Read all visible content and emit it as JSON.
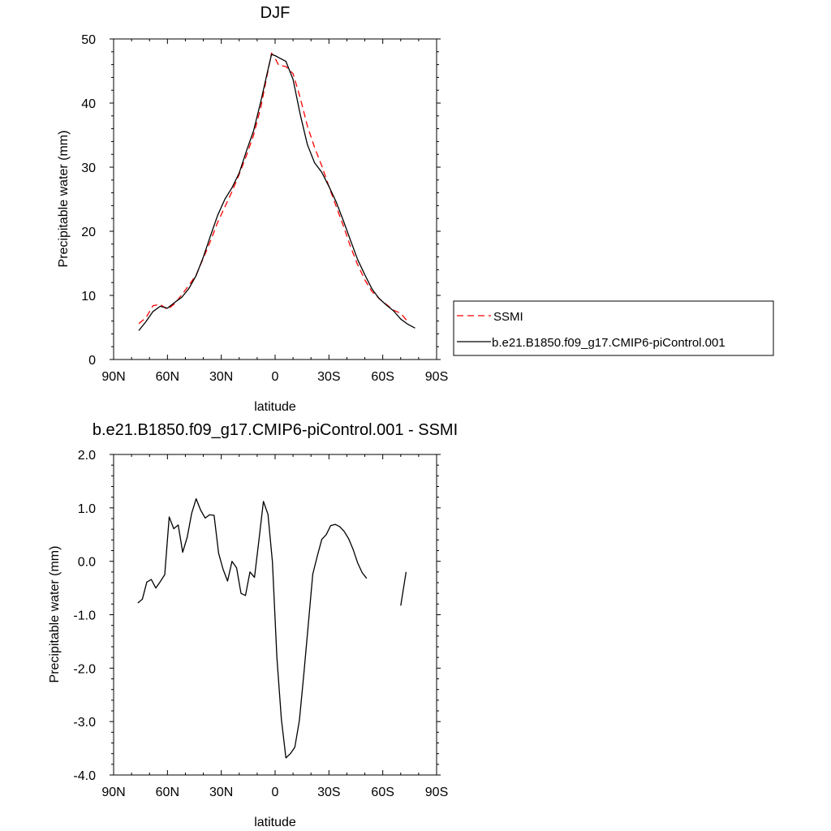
{
  "chart_data": [
    {
      "type": "line",
      "title": "DJF",
      "xlabel": "latitude",
      "ylabel": "Precipitable water (mm)",
      "xlim": [
        -90,
        90
      ],
      "ylim": [
        0,
        50
      ],
      "x_ticks": [
        {
          "value": -90,
          "label": "90N"
        },
        {
          "value": -60,
          "label": "60N"
        },
        {
          "value": -30,
          "label": "30N"
        },
        {
          "value": 0,
          "label": "0"
        },
        {
          "value": 30,
          "label": "30S"
        },
        {
          "value": 60,
          "label": "60S"
        },
        {
          "value": 90,
          "label": "90S"
        }
      ],
      "y_ticks": [
        {
          "value": 0,
          "label": "0"
        },
        {
          "value": 10,
          "label": "10"
        },
        {
          "value": 20,
          "label": "20"
        },
        {
          "value": 30,
          "label": "30"
        },
        {
          "value": 40,
          "label": "40"
        },
        {
          "value": 50,
          "label": "50"
        }
      ],
      "legend_position": "right",
      "series": [
        {
          "name": "SSMI",
          "color": "#ff0000",
          "dashed": true,
          "points": [
            [
              -76,
              5.6
            ],
            [
              -72,
              6.5
            ],
            [
              -68,
              8.4
            ],
            [
              -64,
              8.6
            ],
            [
              -60,
              7.8
            ],
            [
              -56,
              8.7
            ],
            [
              -52,
              10.1
            ],
            [
              -48,
              11.6
            ],
            [
              -44,
              13.2
            ],
            [
              -40,
              15.8
            ],
            [
              -36,
              18.5
            ],
            [
              -32,
              21.4
            ],
            [
              -28,
              23.8
            ],
            [
              -24,
              26.2
            ],
            [
              -20,
              28.9
            ],
            [
              -16,
              31.8
            ],
            [
              -12,
              35.0
            ],
            [
              -8,
              39.3
            ],
            [
              -4,
              45.0
            ],
            [
              -2,
              47.8
            ],
            [
              0,
              47.0
            ],
            [
              2,
              45.9
            ],
            [
              6,
              45.7
            ],
            [
              10,
              44.6
            ],
            [
              14,
              40.8
            ],
            [
              18,
              36.4
            ],
            [
              22,
              33.1
            ],
            [
              26,
              30.2
            ],
            [
              30,
              27.0
            ],
            [
              34,
              23.9
            ],
            [
              38,
              20.9
            ],
            [
              42,
              17.6
            ],
            [
              46,
              14.8
            ],
            [
              50,
              12.4
            ],
            [
              54,
              10.6
            ],
            [
              58,
              9.5
            ],
            [
              62,
              8.6
            ],
            [
              66,
              7.7
            ],
            [
              70,
              7.2
            ],
            [
              74,
              5.9
            ]
          ]
        },
        {
          "name": "b.e21.B1850.f09_g17.CMIP6-piControl.001",
          "color": "#000000",
          "dashed": false,
          "points": [
            [
              -76,
              4.5
            ],
            [
              -72,
              5.9
            ],
            [
              -68,
              7.5
            ],
            [
              -64,
              8.3
            ],
            [
              -60,
              8.0
            ],
            [
              -56,
              8.9
            ],
            [
              -52,
              9.7
            ],
            [
              -48,
              11.1
            ],
            [
              -44,
              13.1
            ],
            [
              -40,
              16.0
            ],
            [
              -36,
              19.3
            ],
            [
              -32,
              22.5
            ],
            [
              -28,
              25.0
            ],
            [
              -24,
              26.8
            ],
            [
              -20,
              29.1
            ],
            [
              -16,
              32.5
            ],
            [
              -12,
              35.7
            ],
            [
              -8,
              40.2
            ],
            [
              -4,
              45.2
            ],
            [
              -2,
              47.6
            ],
            [
              0,
              47.4
            ],
            [
              2,
              47.1
            ],
            [
              6,
              46.5
            ],
            [
              10,
              43.7
            ],
            [
              14,
              38.2
            ],
            [
              18,
              33.5
            ],
            [
              22,
              30.7
            ],
            [
              26,
              29.2
            ],
            [
              30,
              27.0
            ],
            [
              34,
              24.6
            ],
            [
              38,
              21.7
            ],
            [
              42,
              18.6
            ],
            [
              46,
              15.6
            ],
            [
              50,
              13.2
            ],
            [
              54,
              11.0
            ],
            [
              58,
              9.5
            ],
            [
              62,
              8.5
            ],
            [
              66,
              7.6
            ],
            [
              70,
              6.3
            ],
            [
              74,
              5.5
            ],
            [
              78,
              4.9
            ]
          ]
        }
      ]
    },
    {
      "type": "line",
      "title": "b.e21.B1850.f09_g17.CMIP6-piControl.001 - SSMI",
      "xlabel": "latitude",
      "ylabel": "Precipitable water (mm)",
      "xlim": [
        -90,
        90
      ],
      "ylim": [
        -4.0,
        2.0
      ],
      "x_ticks": [
        {
          "value": -90,
          "label": "90N"
        },
        {
          "value": -60,
          "label": "60N"
        },
        {
          "value": -30,
          "label": "30N"
        },
        {
          "value": 0,
          "label": "0"
        },
        {
          "value": 30,
          "label": "30S"
        },
        {
          "value": 60,
          "label": "60S"
        },
        {
          "value": 90,
          "label": "90S"
        }
      ],
      "y_ticks": [
        {
          "value": 2.0,
          "label": "2.0"
        },
        {
          "value": 1.0,
          "label": "1.0"
        },
        {
          "value": 0.0,
          "label": "0.0"
        },
        {
          "value": -1.0,
          "label": "-1.0"
        },
        {
          "value": -2.0,
          "label": "-2.0"
        },
        {
          "value": -3.0,
          "label": "-3.0"
        },
        {
          "value": -4.0,
          "label": "-4.0"
        }
      ],
      "series": [
        {
          "color": "#000000",
          "segments": [
            [
              [
                -76.5,
                -0.78
              ],
              [
                -74,
                -0.71
              ],
              [
                -71.5,
                -0.39
              ],
              [
                -69,
                -0.34
              ],
              [
                -66.5,
                -0.5
              ],
              [
                -64,
                -0.38
              ],
              [
                -61.5,
                -0.25
              ],
              [
                -59,
                0.83
              ],
              [
                -56.5,
                0.61
              ],
              [
                -54,
                0.68
              ],
              [
                -51.5,
                0.17
              ],
              [
                -49,
                0.45
              ],
              [
                -46.5,
                0.9
              ],
              [
                -44,
                1.17
              ],
              [
                -41.5,
                0.96
              ],
              [
                -39,
                0.81
              ],
              [
                -36.5,
                0.87
              ],
              [
                -34,
                0.86
              ],
              [
                -31.5,
                0.15
              ],
              [
                -29,
                -0.15
              ],
              [
                -26.5,
                -0.37
              ],
              [
                -24,
                0.0
              ],
              [
                -21.5,
                -0.12
              ],
              [
                -19,
                -0.6
              ],
              [
                -16.5,
                -0.64
              ],
              [
                -14,
                -0.2
              ],
              [
                -11.5,
                -0.3
              ],
              [
                -9,
                0.4
              ],
              [
                -6.5,
                1.12
              ],
              [
                -4,
                0.88
              ],
              [
                -1.5,
                -0.01
              ],
              [
                1,
                -1.8
              ],
              [
                3.5,
                -2.95
              ],
              [
                6,
                -3.68
              ],
              [
                8.5,
                -3.6
              ],
              [
                11,
                -3.48
              ],
              [
                13.5,
                -2.98
              ],
              [
                16,
                -2.11
              ],
              [
                18.5,
                -1.18
              ],
              [
                21,
                -0.24
              ],
              [
                23.5,
                0.1
              ],
              [
                26,
                0.41
              ],
              [
                28.5,
                0.5
              ],
              [
                31,
                0.67
              ],
              [
                33.5,
                0.69
              ],
              [
                36,
                0.65
              ],
              [
                38.5,
                0.56
              ],
              [
                41,
                0.42
              ],
              [
                43.5,
                0.22
              ],
              [
                46,
                -0.03
              ],
              [
                48.5,
                -0.21
              ],
              [
                51,
                -0.32
              ]
            ],
            [
              [
                70,
                -0.83
              ],
              [
                73,
                -0.2
              ]
            ]
          ]
        }
      ]
    }
  ]
}
